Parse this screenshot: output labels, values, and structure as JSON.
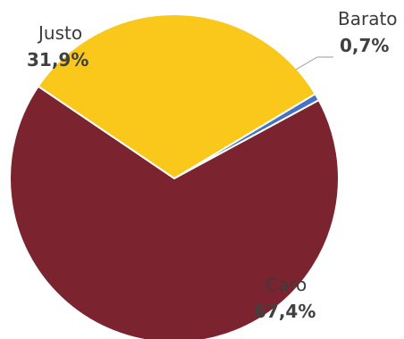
{
  "chart_data": {
    "type": "pie",
    "title": "",
    "legend": "none",
    "slices": [
      {
        "label": "Barato",
        "value_label": "0,7%",
        "value": 0.7,
        "color": "#4472C4"
      },
      {
        "label": "Caro",
        "value_label": "67,4%",
        "value": 67.4,
        "color": "#7B2430"
      },
      {
        "label": "Justo",
        "value_label": "31,9%",
        "value": 31.9,
        "color": "#F9C81A"
      }
    ]
  }
}
